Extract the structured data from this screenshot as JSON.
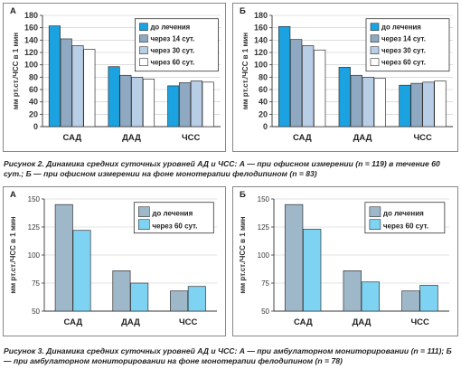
{
  "chart_data": [
    {
      "id": "fig2a",
      "type": "bar",
      "panel_label": "А",
      "ylabel": "мм рт.ст./ЧСС в 1 мин",
      "ylim": [
        0,
        180
      ],
      "yticks": [
        0,
        20,
        40,
        60,
        80,
        100,
        120,
        140,
        160,
        180
      ],
      "categories": [
        "САД",
        "ДАД",
        "ЧСС"
      ],
      "legend_position": "top-right",
      "series": [
        {
          "name": "до лечения",
          "color": "#1aa3e0",
          "values": [
            163,
            97,
            66
          ]
        },
        {
          "name": "через 14 сут.",
          "color": "#8ea9c1",
          "values": [
            142,
            83,
            71
          ]
        },
        {
          "name": "через 30 сут.",
          "color": "#b8cde6",
          "values": [
            131,
            80,
            74
          ]
        },
        {
          "name": "через 60 сут.",
          "color": "#ffffff",
          "values": [
            125,
            77,
            72
          ]
        }
      ]
    },
    {
      "id": "fig2b",
      "type": "bar",
      "panel_label": "Б",
      "ylabel": "мм рт.ст./ЧСС в 1 мин",
      "ylim": [
        0,
        180
      ],
      "yticks": [
        0,
        20,
        40,
        60,
        80,
        100,
        120,
        140,
        160,
        180
      ],
      "categories": [
        "САД",
        "ДАД",
        "ЧСС"
      ],
      "legend_position": "top-right",
      "series": [
        {
          "name": "до лечения",
          "color": "#1aa3e0",
          "values": [
            162,
            96,
            67
          ]
        },
        {
          "name": "через 14 сут.",
          "color": "#8ea9c1",
          "values": [
            141,
            83,
            70
          ]
        },
        {
          "name": "через 30 сут.",
          "color": "#b8cde6",
          "values": [
            131,
            80,
            72
          ]
        },
        {
          "name": "через 60 сут.",
          "color": "#ffffff",
          "values": [
            124,
            78,
            74
          ]
        }
      ]
    },
    {
      "id": "fig3a",
      "type": "bar",
      "panel_label": "А",
      "ylabel": "мм рт.ст./ЧСС в 1 мин",
      "ylim": [
        50,
        150
      ],
      "yticks": [
        50,
        75,
        100,
        125,
        150
      ],
      "categories": [
        "САД",
        "ДАД",
        "ЧСС"
      ],
      "legend_position": "top-right",
      "series": [
        {
          "name": "до лечения",
          "color": "#9fb8c9",
          "values": [
            145,
            86,
            68
          ]
        },
        {
          "name": "через 60 сут.",
          "color": "#7fd3f2",
          "values": [
            122,
            75,
            72
          ]
        }
      ]
    },
    {
      "id": "fig3b",
      "type": "bar",
      "panel_label": "Б",
      "ylabel": "мм рт.ст./ЧСС в 1 мин",
      "ylim": [
        50,
        150
      ],
      "yticks": [
        50,
        75,
        100,
        125,
        150
      ],
      "categories": [
        "САД",
        "ДАД",
        "ЧСС"
      ],
      "legend_position": "top-right",
      "series": [
        {
          "name": "до лечения",
          "color": "#9fb8c9",
          "values": [
            145,
            86,
            68
          ]
        },
        {
          "name": "через 60 сут.",
          "color": "#7fd3f2",
          "values": [
            123,
            76,
            73
          ]
        }
      ]
    }
  ],
  "captions": {
    "fig2": "Рисунок 2. Динамика средних суточных уровней АД и ЧСС: А — при офисном измерении (n = 119) в течение 60 сут.; Б — при офисном измерении на фоне монотерапии фелодипином (n = 83)",
    "fig3": "Рисунок 3. Динамика средних суточных уровней АД и ЧСС: А — при амбулаторном мониторировании (n = 111); Б — при амбулаторном мониторировании на фоне монотерапии фелодипином (n = 78)"
  }
}
